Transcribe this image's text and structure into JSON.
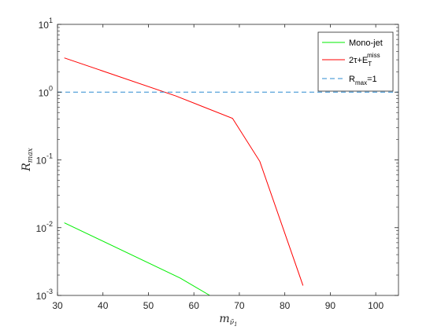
{
  "chart_data": {
    "type": "line",
    "xlabel": "m",
    "xlabel_sub": "ν̃",
    "xlabel_subsub": "1",
    "ylabel": "R",
    "ylabel_sub": "max",
    "xlim": [
      30,
      105
    ],
    "ylim": [
      0.001,
      10
    ],
    "yscale": "log",
    "grid": false,
    "legend_placement": "top-right",
    "x_ticks": [
      30,
      40,
      50,
      60,
      70,
      80,
      90,
      100
    ],
    "y_ticks": [
      {
        "value": 0.001,
        "base": "10",
        "exp": "-3"
      },
      {
        "value": 0.01,
        "base": "10",
        "exp": "-2"
      },
      {
        "value": 0.1,
        "base": "10",
        "exp": "-1"
      },
      {
        "value": 1,
        "base": "10",
        "exp": "0"
      },
      {
        "value": 10,
        "base": "10",
        "exp": "1"
      }
    ],
    "series": [
      {
        "name": "Mono-jet",
        "color": "#00ee00",
        "style": "solid",
        "x": [
          31.5,
          57,
          63.5
        ],
        "y": [
          0.0118,
          0.0018,
          0.001
        ]
      },
      {
        "name": "2τ+E",
        "name_sub": "T",
        "name_sup": "miss",
        "color": "#ff0000",
        "style": "solid",
        "x": [
          31.5,
          56,
          68.5,
          74.5,
          84
        ],
        "y": [
          3.2,
          0.88,
          0.41,
          0.095,
          0.0014
        ]
      },
      {
        "name": "R",
        "name_sub": "max",
        "name_suffix": "=1",
        "color": "#2e8bd1",
        "style": "dashed",
        "x": [
          30,
          105
        ],
        "y": [
          1,
          1
        ]
      }
    ]
  }
}
